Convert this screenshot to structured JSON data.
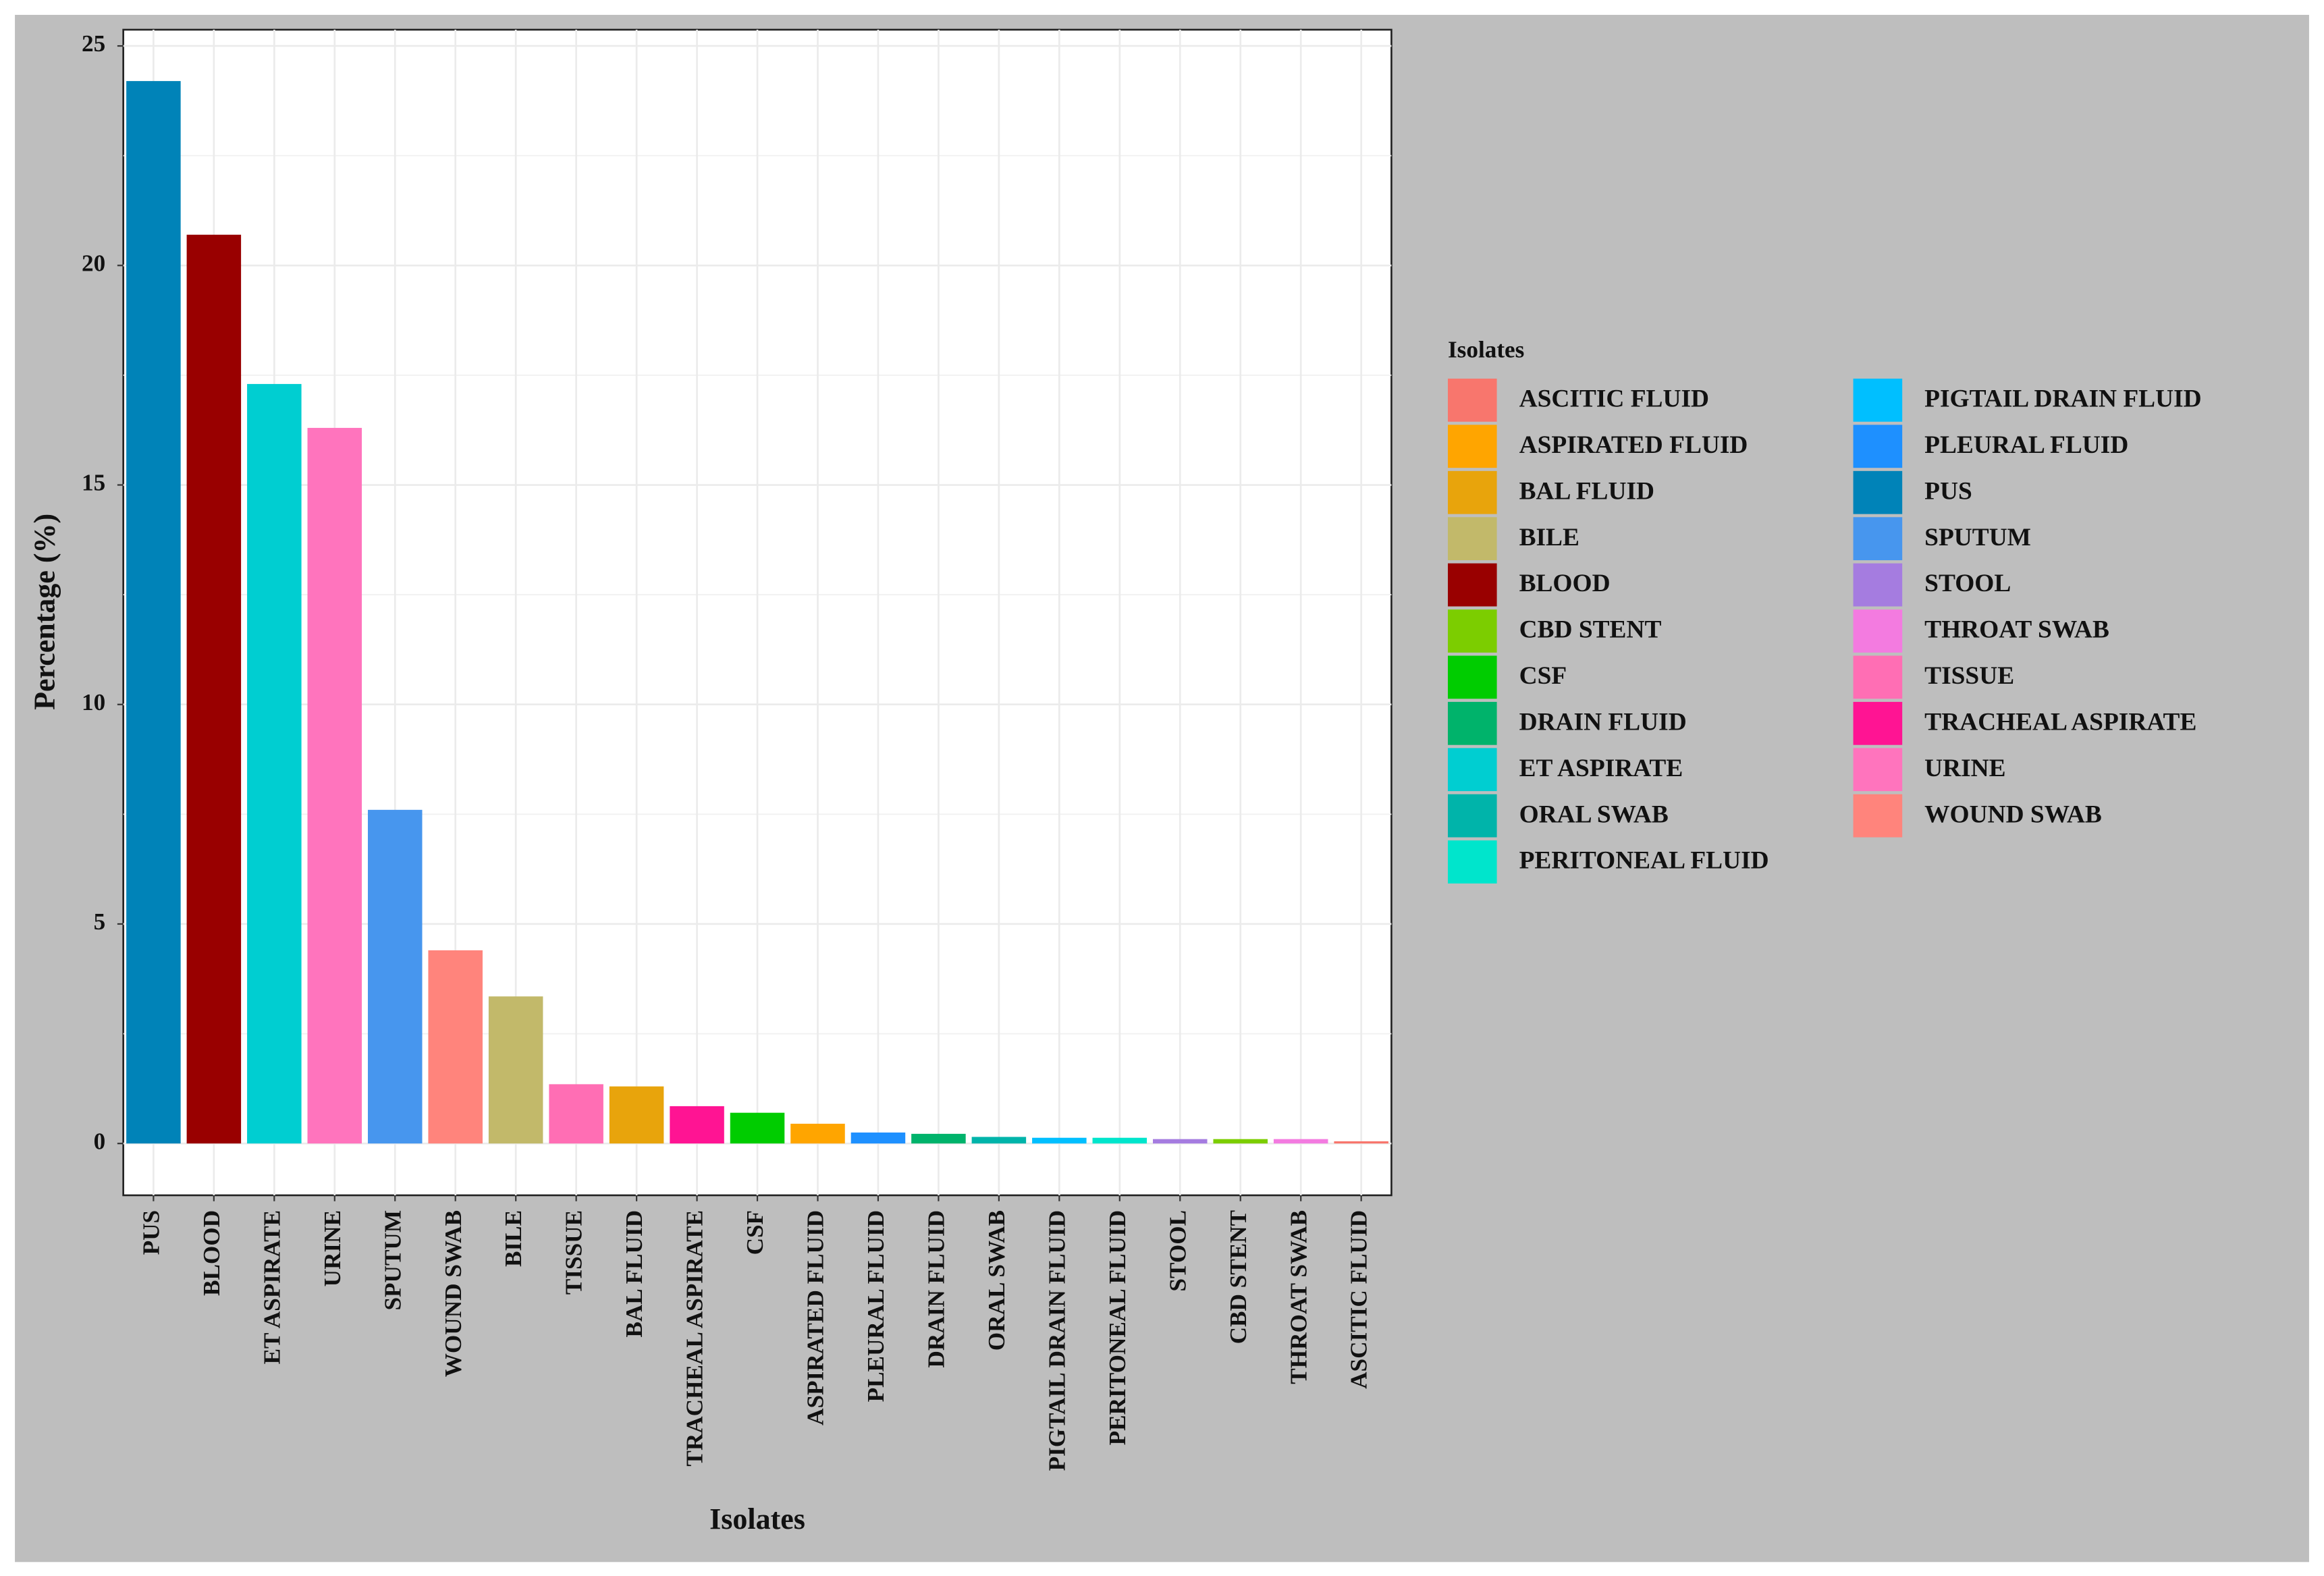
{
  "chart_data": {
    "type": "bar",
    "x_label": "Isolates",
    "y_label": "Percentage (%)",
    "categories": [
      "PUS",
      "BLOOD",
      "ET ASPIRATE",
      "URINE",
      "SPUTUM",
      "WOUND SWAB",
      "BILE",
      "TISSUE",
      "BAL FLUID",
      "TRACHEAL ASPIRATE",
      "CSF",
      "ASPIRATED FLUID",
      "PLEURAL FLUID",
      "DRAIN FLUID",
      "ORAL SWAB",
      "PIGTAIL DRAIN FLUID",
      "PERITONEAL FLUID",
      "STOOL",
      "CBD STENT",
      "THROAT SWAB",
      "ASCITIC FLUID"
    ],
    "values": [
      24.2,
      20.7,
      17.3,
      16.3,
      7.6,
      4.4,
      3.35,
      1.35,
      1.3,
      0.85,
      0.7,
      0.45,
      0.25,
      0.22,
      0.15,
      0.13,
      0.13,
      0.1,
      0.1,
      0.1,
      0.05
    ],
    "colors": [
      "#0083B8",
      "#990000",
      "#00CED1",
      "#FF74BD",
      "#4796EE",
      "#FF847C",
      "#C2B96A",
      "#FF6EB4",
      "#E8A40C",
      "#FF1493",
      "#00CC00",
      "#FFA500",
      "#1E90FF",
      "#00B36B",
      "#00B4AA",
      "#00BFFF",
      "#00E5CC",
      "#A57CE0",
      "#7CCD00",
      "#F37BE0",
      "#F8766D"
    ],
    "ylim": [
      -1.18,
      25.37
    ],
    "yticks": [
      0,
      5,
      10,
      15,
      20,
      25
    ],
    "grid": true,
    "legend": {
      "title": "Isolates",
      "position": "right",
      "items": [
        {
          "name": "ASCITIC FLUID",
          "color": "#F8766D"
        },
        {
          "name": "ASPIRATED FLUID",
          "color": "#FFA500"
        },
        {
          "name": "BAL FLUID",
          "color": "#E8A40C"
        },
        {
          "name": "BILE",
          "color": "#C2B96A"
        },
        {
          "name": "BLOOD",
          "color": "#990000"
        },
        {
          "name": "CBD STENT",
          "color": "#7CCD00"
        },
        {
          "name": "CSF",
          "color": "#00CC00"
        },
        {
          "name": "DRAIN FLUID",
          "color": "#00B36B"
        },
        {
          "name": "ET ASPIRATE",
          "color": "#00CED1"
        },
        {
          "name": "ORAL SWAB",
          "color": "#00B4AA"
        },
        {
          "name": "PERITONEAL FLUID",
          "color": "#00E5CC"
        },
        {
          "name": "PIGTAIL DRAIN FLUID",
          "color": "#00BFFF"
        },
        {
          "name": "PLEURAL FLUID",
          "color": "#1E90FF"
        },
        {
          "name": "PUS",
          "color": "#0083B8"
        },
        {
          "name": "SPUTUM",
          "color": "#4796EE"
        },
        {
          "name": "STOOL",
          "color": "#A57CE0"
        },
        {
          "name": "THROAT SWAB",
          "color": "#F37BE0"
        },
        {
          "name": "TISSUE",
          "color": "#FF6EB4"
        },
        {
          "name": "TRACHEAL ASPIRATE",
          "color": "#FF1493"
        },
        {
          "name": "URINE",
          "color": "#FF74BD"
        },
        {
          "name": "WOUND SWAB",
          "color": "#FF847C"
        }
      ]
    }
  }
}
